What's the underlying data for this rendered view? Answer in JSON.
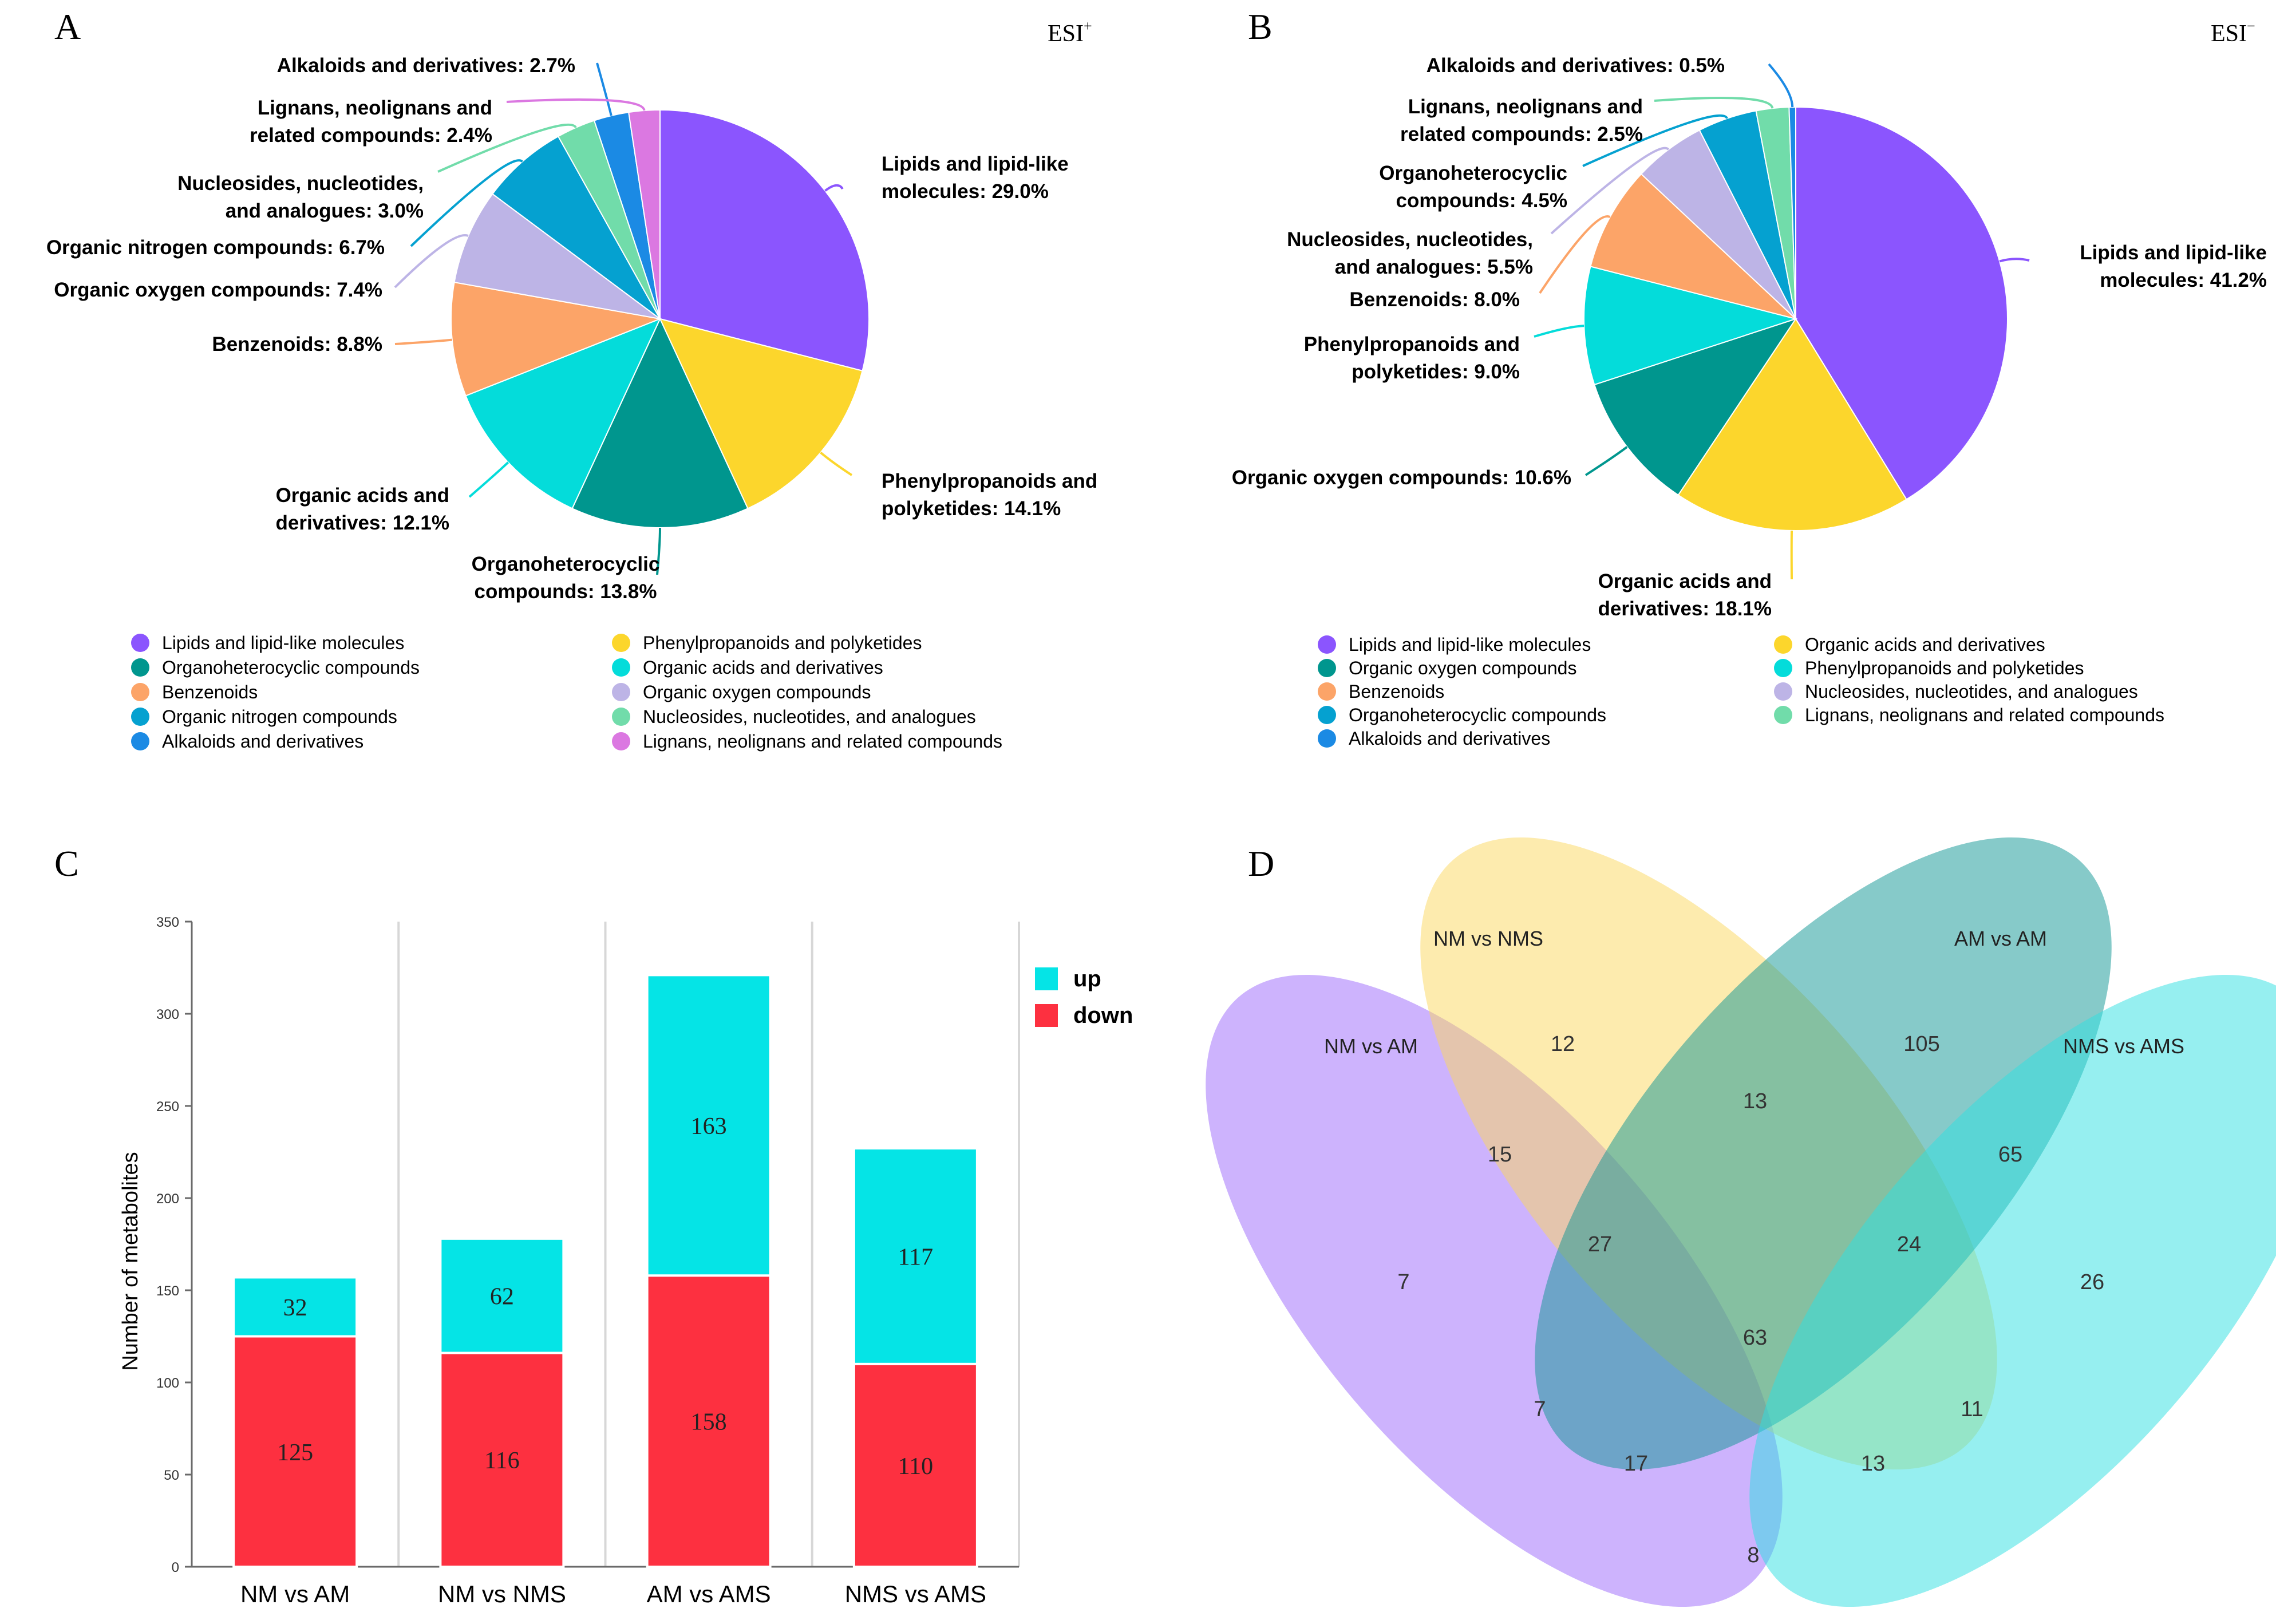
{
  "panels": {
    "a": {
      "letter": "A",
      "ion": "ESI",
      "ion_sup": "+"
    },
    "b": {
      "letter": "B",
      "ion": "ESI",
      "ion_sup": "−"
    },
    "c": {
      "letter": "C"
    },
    "d": {
      "letter": "D"
    }
  },
  "chart_data": [
    {
      "type": "pie",
      "id": "esi-positive",
      "title": "ESI+",
      "slices": [
        {
          "label": "Lipids and lipid-like molecules",
          "value": 29.0,
          "color": "#8b55fe",
          "callout": [
            "Lipids and lipid-like",
            "molecules: 29.0%"
          ]
        },
        {
          "label": "Phenylpropanoids and polyketides",
          "value": 14.1,
          "color": "#fcd62c",
          "callout": [
            "Phenylpropanoids and",
            "polyketides: 14.1%"
          ]
        },
        {
          "label": "Organoheterocyclic compounds",
          "value": 13.8,
          "color": "#00968e",
          "callout": [
            "Organoheterocyclic",
            "compounds: 13.8%"
          ]
        },
        {
          "label": "Organic acids and derivatives",
          "value": 12.1,
          "color": "#04dcda",
          "callout": [
            "Organic acids and",
            "derivatives: 12.1%"
          ]
        },
        {
          "label": "Benzenoids",
          "value": 8.8,
          "color": "#fca468",
          "callout": [
            "Benzenoids: 8.8%"
          ]
        },
        {
          "label": "Organic oxygen compounds",
          "value": 7.4,
          "color": "#bdb4e6",
          "callout": [
            "Organic oxygen compounds: 7.4%"
          ]
        },
        {
          "label": "Organic nitrogen compounds",
          "value": 6.7,
          "color": "#05a1d0",
          "callout": [
            "Organic nitrogen compounds: 6.7%"
          ]
        },
        {
          "label": "Nucleosides, nucleotides, and analogues",
          "value": 3.0,
          "color": "#71dcaa",
          "callout": [
            "Nucleosides, nucleotides,",
            "and analogues: 3.0%"
          ]
        },
        {
          "label": "Alkaloids and derivatives",
          "value": 2.7,
          "color": "#1b8ae4",
          "callout": [
            "Alkaloids and derivatives: 2.7%"
          ]
        },
        {
          "label": "Lignans, neolignans and related compounds",
          "value": 2.4,
          "color": "#db78e1",
          "callout": [
            "Lignans, neolignans and",
            "related compounds: 2.4%"
          ]
        }
      ],
      "legend": [
        [
          "Lipids and lipid-like molecules",
          "Phenylpropanoids and polyketides"
        ],
        [
          "Organoheterocyclic compounds",
          "Organic acids and derivatives"
        ],
        [
          "Benzenoids",
          "Organic oxygen compounds"
        ],
        [
          "Organic nitrogen compounds",
          "Nucleosides, nucleotides, and analogues"
        ],
        [
          "Alkaloids and derivatives",
          "Lignans, neolignans and related compounds"
        ]
      ]
    },
    {
      "type": "pie",
      "id": "esi-negative",
      "title": "ESI−",
      "slices": [
        {
          "label": "Lipids and lipid-like molecules",
          "value": 41.2,
          "color": "#8b55fe",
          "callout": [
            "Lipids and lipid-like",
            "molecules: 41.2%"
          ]
        },
        {
          "label": "Organic acids and derivatives",
          "value": 18.1,
          "color": "#fcd62c",
          "callout": [
            "Organic acids and",
            "derivatives: 18.1%"
          ]
        },
        {
          "label": "Organic oxygen compounds",
          "value": 10.6,
          "color": "#00968e",
          "callout": [
            "Organic oxygen compounds: 10.6%"
          ]
        },
        {
          "label": "Phenylpropanoids and polyketides",
          "value": 9.0,
          "color": "#04dcda",
          "callout": [
            "Phenylpropanoids and",
            "polyketides: 9.0%"
          ]
        },
        {
          "label": "Benzenoids",
          "value": 8.0,
          "color": "#fca468",
          "callout": [
            "Benzenoids: 8.0%"
          ]
        },
        {
          "label": "Nucleosides, nucleotides, and analogues",
          "value": 5.5,
          "color": "#bdb4e6",
          "callout": [
            "Nucleosides, nucleotides,",
            "and analogues: 5.5%"
          ]
        },
        {
          "label": "Organoheterocyclic compounds",
          "value": 4.5,
          "color": "#05a1d0",
          "callout": [
            "Organoheterocyclic",
            "compounds: 4.5%"
          ]
        },
        {
          "label": "Lignans, neolignans and related compounds",
          "value": 2.5,
          "color": "#71dcaa",
          "callout": [
            "Lignans, neolignans and",
            "related compounds: 2.5%"
          ]
        },
        {
          "label": "Alkaloids and derivatives",
          "value": 0.5,
          "color": "#1b8ae4",
          "callout": [
            "Alkaloids and derivatives: 0.5%"
          ]
        }
      ],
      "legend": [
        [
          "Lipids and lipid-like molecules",
          "Organic acids and derivatives"
        ],
        [
          "Organic oxygen compounds",
          "Phenylpropanoids and polyketides"
        ],
        [
          "Benzenoids",
          "Nucleosides, nucleotides, and analogues"
        ],
        [
          "Organoheterocyclic compounds",
          "Lignans, neolignans and related compounds"
        ],
        [
          "Alkaloids and derivatives",
          null
        ]
      ]
    },
    {
      "type": "bar",
      "id": "differential-metabolites",
      "stacked": true,
      "categories": [
        "NM vs AM",
        "NM vs NMS",
        "AM vs AMS",
        "NMS vs AMS"
      ],
      "series": [
        {
          "name": "down",
          "values": [
            125,
            116,
            158,
            110
          ],
          "color": "#fd3040"
        },
        {
          "name": "up",
          "values": [
            32,
            62,
            163,
            117
          ],
          "color": "#05e4e6"
        }
      ],
      "ylabel": "Number of metabolites",
      "xlabel": "",
      "ylim": [
        0,
        350
      ],
      "yticks": [
        0,
        50,
        100,
        150,
        200,
        250,
        300,
        350
      ],
      "grid": true,
      "legend_position": "top-right"
    },
    {
      "type": "venn",
      "id": "venn-4-sets",
      "sets": [
        {
          "name": "NM vs AM",
          "color": "#9b68fb"
        },
        {
          "name": "NM vs NMS",
          "color": "#fcd75e"
        },
        {
          "name": "AM vs AM",
          "color": "#0e9694"
        },
        {
          "name": "NMS vs AMS",
          "color": "#2ddfe2"
        }
      ],
      "regions": [
        {
          "sets": [
            "NM vs AM"
          ],
          "value": 7
        },
        {
          "sets": [
            "NM vs NMS"
          ],
          "value": 12
        },
        {
          "sets": [
            "AM vs AM"
          ],
          "value": 105
        },
        {
          "sets": [
            "NMS vs AMS"
          ],
          "value": 26
        },
        {
          "sets": [
            "NM vs AM",
            "NM vs NMS"
          ],
          "value": 15
        },
        {
          "sets": [
            "NM vs NMS",
            "AM vs AM"
          ],
          "value": 13
        },
        {
          "sets": [
            "AM vs AM",
            "NMS vs AMS"
          ],
          "value": 65
        },
        {
          "sets": [
            "NM vs AM",
            "NM vs NMS",
            "AM vs AM"
          ],
          "value": 27
        },
        {
          "sets": [
            "NM vs NMS",
            "AM vs AM",
            "NMS vs AMS"
          ],
          "value": 24
        },
        {
          "sets": [
            "NM vs AM",
            "NM vs NMS",
            "AM vs AM",
            "NMS vs AMS"
          ],
          "value": 63
        },
        {
          "sets": [
            "NM vs AM",
            "AM vs AM"
          ],
          "value": 7
        },
        {
          "sets": [
            "NM vs NMS",
            "NMS vs AMS"
          ],
          "value": 11
        },
        {
          "sets": [
            "NM vs AM",
            "AM vs AM",
            "NMS vs AMS"
          ],
          "value": 17
        },
        {
          "sets": [
            "NM vs AM",
            "NM vs NMS",
            "NMS vs AMS"
          ],
          "value": 13
        },
        {
          "sets": [
            "NM vs AM",
            "NMS vs AMS"
          ],
          "value": 8
        }
      ]
    }
  ]
}
